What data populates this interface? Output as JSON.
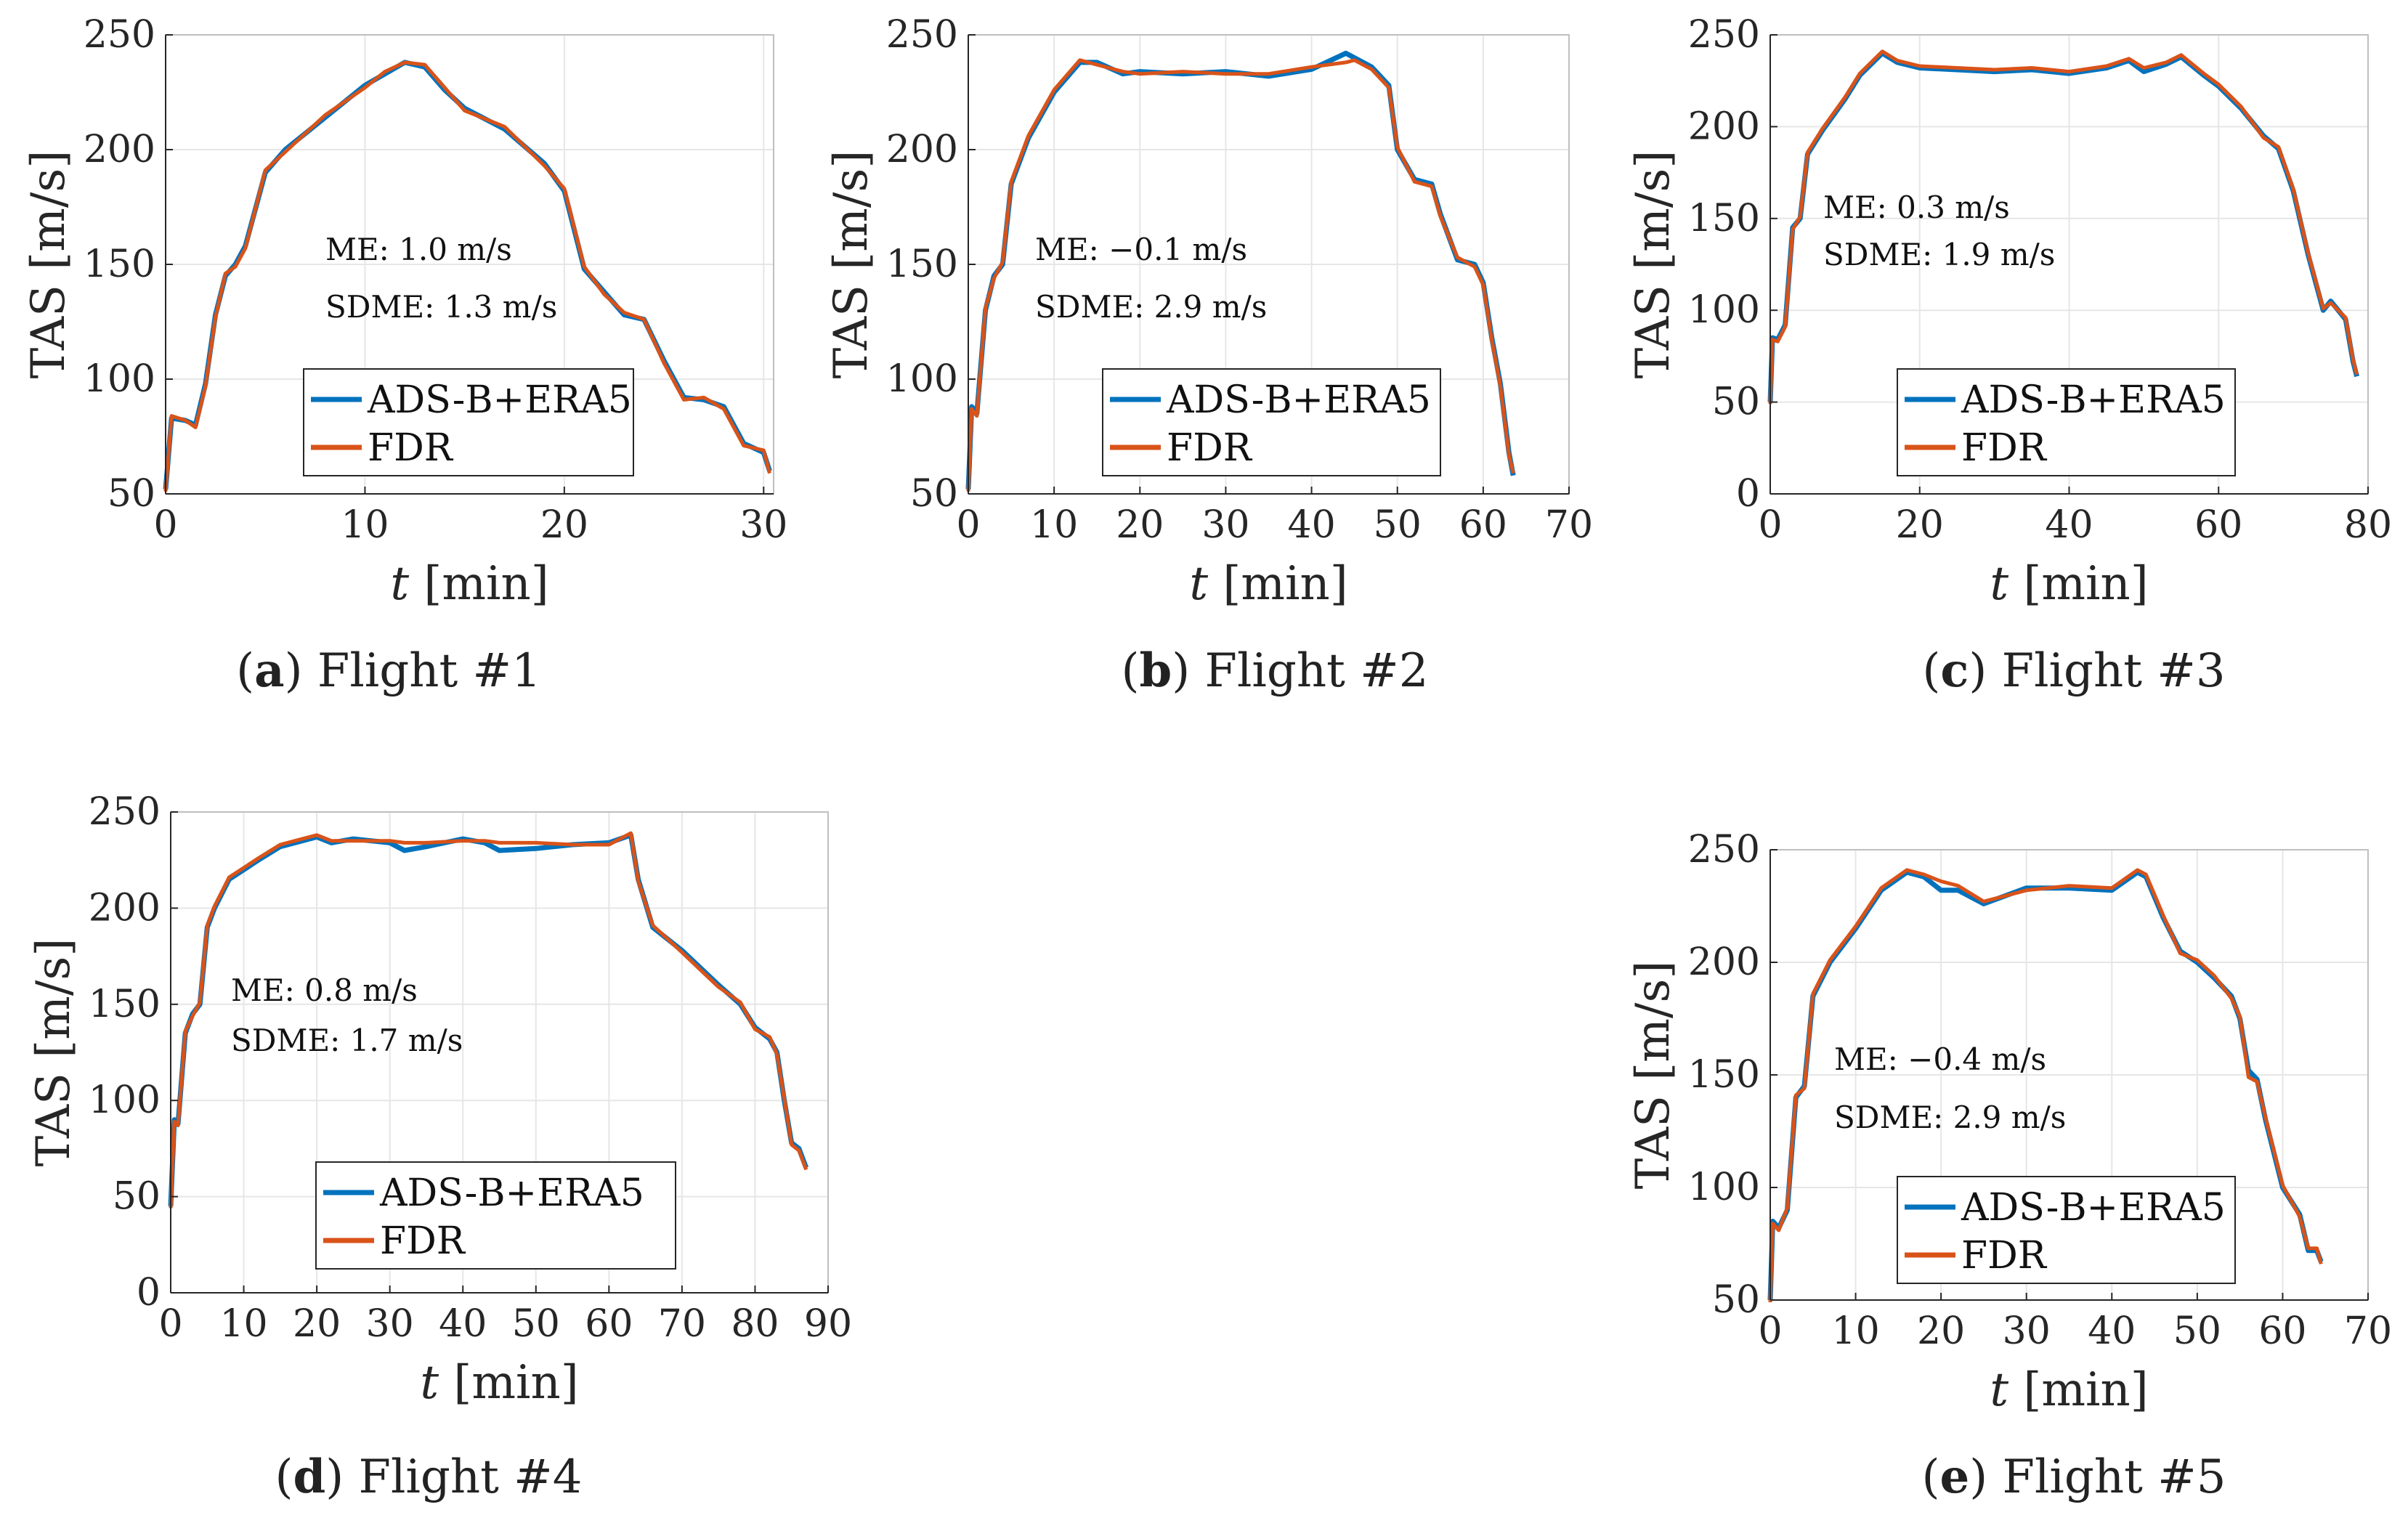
{
  "legend": {
    "series1": "ADS-B+ERA5",
    "series2": "FDR"
  },
  "colors": {
    "series1": "#0072BD",
    "series2": "#D95319",
    "grid": "#e6e6e6",
    "axis": "#262626"
  },
  "chart_data": [
    {
      "id": "a",
      "type": "line",
      "caption_letter": "a",
      "caption_text": " Flight #1",
      "xlabel_var": "t",
      "xlabel_unit": "[min]",
      "ylabel": "TAS [m/s]",
      "xlim": [
        0,
        30.5
      ],
      "ylim": [
        50,
        250
      ],
      "xticks": [
        0,
        10,
        20,
        30
      ],
      "yticks": [
        50,
        100,
        150,
        200,
        250
      ],
      "grid": true,
      "legend_position": "bottom-center",
      "annotations": [
        "ME: 1.0 m/s",
        "SDME: 1.3 m/s"
      ],
      "series": [
        {
          "name": "ADS-B+ERA5",
          "x": [
            0,
            0.3,
            1,
            1.5,
            2,
            2.5,
            3,
            3.5,
            4,
            5,
            6,
            8,
            10,
            11,
            12,
            13,
            14,
            15,
            17,
            19,
            20,
            21,
            22,
            23,
            24,
            25,
            26,
            27,
            28,
            29,
            30,
            30.3
          ],
          "y": [
            52,
            83,
            82,
            80,
            98,
            128,
            145,
            150,
            158,
            190,
            200,
            214,
            228,
            233,
            238,
            236,
            226,
            218,
            209,
            194,
            182,
            148,
            138,
            128,
            126,
            108,
            92,
            91,
            88,
            72,
            68,
            60
          ]
        },
        {
          "name": "FDR",
          "x": [
            0,
            0.3,
            1,
            1.5,
            2,
            2.5,
            3,
            3.5,
            4,
            5,
            6,
            8,
            10,
            11,
            12,
            13,
            14,
            15,
            17,
            19,
            20,
            21,
            22,
            23,
            24,
            25,
            26,
            27,
            28,
            29,
            30,
            30.3
          ],
          "y": [
            51,
            84,
            82,
            79,
            97,
            127,
            146,
            149,
            157,
            191,
            199,
            215,
            227,
            234,
            238,
            237,
            227,
            217,
            210,
            193,
            183,
            149,
            137,
            129,
            126,
            107,
            91,
            92,
            87,
            71,
            69,
            59
          ]
        }
      ]
    },
    {
      "id": "b",
      "type": "line",
      "caption_letter": "b",
      "caption_text": " Flight #2",
      "xlabel_var": "t",
      "xlabel_unit": "[min]",
      "ylabel": "TAS [m/s]",
      "xlim": [
        0,
        70
      ],
      "ylim": [
        50,
        250
      ],
      "xticks": [
        0,
        10,
        20,
        30,
        40,
        50,
        60,
        70
      ],
      "yticks": [
        50,
        100,
        150,
        200,
        250
      ],
      "grid": true,
      "legend_position": "bottom-center",
      "annotations": [
        "ME: −0.1 m/s",
        "SDME: 2.9 m/s"
      ],
      "series": [
        {
          "name": "ADS-B+ERA5",
          "x": [
            0,
            0.4,
            1,
            2,
            3,
            4,
            5,
            7,
            10,
            13,
            15,
            18,
            20,
            25,
            30,
            35,
            40,
            44,
            45,
            47,
            49,
            50,
            52,
            54,
            55,
            57,
            59,
            60,
            61,
            62,
            63,
            63.5
          ],
          "y": [
            52,
            88,
            85,
            130,
            145,
            150,
            185,
            205,
            225,
            238,
            238,
            233,
            234,
            233,
            234,
            232,
            235,
            242,
            240,
            236,
            228,
            200,
            187,
            185,
            172,
            152,
            150,
            142,
            118,
            98,
            68,
            58
          ]
        },
        {
          "name": "FDR",
          "x": [
            0,
            0.4,
            1,
            2,
            3,
            4,
            5,
            7,
            10,
            13,
            15,
            18,
            20,
            25,
            30,
            35,
            40,
            44,
            45,
            47,
            49,
            50,
            52,
            54,
            55,
            57,
            59,
            60,
            61,
            62,
            63,
            63.5
          ],
          "y": [
            51,
            87,
            84,
            131,
            144,
            151,
            186,
            206,
            226,
            239,
            237,
            234,
            233,
            234,
            233,
            233,
            236,
            238,
            239,
            235,
            227,
            201,
            186,
            184,
            171,
            153,
            149,
            141,
            117,
            97,
            67,
            59
          ]
        }
      ]
    },
    {
      "id": "c",
      "type": "line",
      "caption_letter": "c",
      "caption_text": " Flight #3",
      "xlabel_var": "t",
      "xlabel_unit": "[min]",
      "ylabel": "TAS [m/s]",
      "xlim": [
        0,
        80
      ],
      "ylim": [
        0,
        250
      ],
      "xticks": [
        0,
        20,
        40,
        60,
        80
      ],
      "yticks": [
        0,
        50,
        100,
        150,
        200,
        250
      ],
      "grid": true,
      "legend_position": "bottom-right",
      "annotations": [
        "ME: 0.3 m/s",
        "SDME: 1.9 m/s"
      ],
      "series": [
        {
          "name": "ADS-B+ERA5",
          "x": [
            0,
            0.3,
            1,
            2,
            3,
            4,
            5,
            7,
            10,
            12,
            15,
            17,
            20,
            25,
            30,
            35,
            40,
            45,
            48,
            50,
            53,
            55,
            58,
            60,
            63,
            66,
            68,
            70,
            72,
            74,
            75,
            77,
            78,
            78.5
          ],
          "y": [
            50,
            85,
            84,
            92,
            145,
            150,
            185,
            198,
            215,
            228,
            240,
            235,
            232,
            231,
            230,
            231,
            229,
            232,
            236,
            230,
            234,
            238,
            228,
            222,
            210,
            195,
            188,
            165,
            130,
            100,
            105,
            95,
            72,
            64
          ]
        },
        {
          "name": "FDR",
          "x": [
            0,
            0.3,
            1,
            2,
            3,
            4,
            5,
            7,
            10,
            12,
            15,
            17,
            20,
            25,
            30,
            35,
            40,
            45,
            48,
            50,
            53,
            55,
            58,
            60,
            63,
            66,
            68,
            70,
            72,
            74,
            75,
            77,
            78,
            78.5
          ],
          "y": [
            49,
            84,
            83,
            91,
            144,
            151,
            186,
            199,
            216,
            229,
            241,
            236,
            233,
            232,
            231,
            232,
            230,
            233,
            237,
            232,
            235,
            239,
            229,
            223,
            211,
            194,
            189,
            166,
            131,
            101,
            104,
            96,
            73,
            65
          ]
        }
      ]
    },
    {
      "id": "d",
      "type": "line",
      "caption_letter": "d",
      "caption_text": " Flight #4",
      "xlabel_var": "t",
      "xlabel_unit": "[min]",
      "ylabel": "TAS [m/s]",
      "xlim": [
        0,
        90
      ],
      "ylim": [
        0,
        250
      ],
      "xticks": [
        0,
        10,
        20,
        30,
        40,
        50,
        60,
        70,
        80,
        90
      ],
      "yticks": [
        0,
        50,
        100,
        150,
        200,
        250
      ],
      "grid": true,
      "legend_position": "bottom-center",
      "annotations": [
        "ME: 0.8 m/s",
        "SDME: 1.7 m/s"
      ],
      "series": [
        {
          "name": "ADS-B+ERA5",
          "x": [
            0,
            0.5,
            1,
            2,
            3,
            4,
            5,
            6,
            8,
            10,
            12,
            15,
            18,
            20,
            22,
            25,
            30,
            32,
            35,
            40,
            43,
            45,
            50,
            55,
            60,
            63,
            64,
            66,
            70,
            75,
            78,
            80,
            82,
            83,
            84,
            85,
            86,
            87
          ],
          "y": [
            45,
            90,
            88,
            135,
            145,
            150,
            190,
            200,
            215,
            220,
            225,
            232,
            235,
            237,
            234,
            236,
            234,
            230,
            232,
            236,
            234,
            230,
            231,
            233,
            234,
            238,
            215,
            190,
            178,
            160,
            150,
            138,
            132,
            125,
            100,
            78,
            75,
            65
          ]
        },
        {
          "name": "FDR",
          "x": [
            0,
            0.5,
            1,
            2,
            3,
            4,
            5,
            6,
            8,
            10,
            12,
            15,
            18,
            20,
            22,
            25,
            30,
            32,
            35,
            40,
            43,
            45,
            50,
            55,
            60,
            63,
            64,
            66,
            70,
            75,
            78,
            80,
            82,
            83,
            84,
            85,
            86,
            87
          ],
          "y": [
            44,
            89,
            87,
            136,
            144,
            151,
            191,
            201,
            216,
            221,
            226,
            233,
            236,
            238,
            235,
            235,
            235,
            234,
            234,
            235,
            235,
            234,
            234,
            233,
            233,
            239,
            214,
            191,
            177,
            159,
            151,
            137,
            133,
            124,
            101,
            77,
            74,
            64
          ]
        }
      ]
    },
    {
      "id": "e",
      "type": "line",
      "caption_letter": "e",
      "caption_text": " Flight #5",
      "xlabel_var": "t",
      "xlabel_unit": "[min]",
      "ylabel": "TAS [m/s]",
      "xlim": [
        0,
        70
      ],
      "ylim": [
        50,
        250
      ],
      "xticks": [
        0,
        10,
        20,
        30,
        40,
        50,
        60,
        70
      ],
      "yticks": [
        50,
        100,
        150,
        200,
        250
      ],
      "grid": true,
      "legend_position": "bottom-center",
      "annotations": [
        "ME: −0.4 m/s",
        "SDME: 2.9 m/s"
      ],
      "series": [
        {
          "name": "ADS-B+ERA5",
          "x": [
            0,
            0.3,
            1,
            2,
            3,
            4,
            5,
            7,
            10,
            13,
            16,
            18,
            20,
            22,
            25,
            30,
            35,
            40,
            43,
            44,
            46,
            48,
            50,
            52,
            54,
            55,
            56,
            57,
            58,
            60,
            62,
            63,
            64,
            64.5
          ],
          "y": [
            50,
            85,
            82,
            90,
            140,
            145,
            185,
            200,
            215,
            232,
            240,
            238,
            232,
            232,
            226,
            233,
            233,
            232,
            240,
            238,
            220,
            205,
            200,
            193,
            185,
            175,
            152,
            148,
            130,
            100,
            88,
            72,
            72,
            67
          ]
        },
        {
          "name": "FDR",
          "x": [
            0,
            0.3,
            1,
            2,
            3,
            4,
            5,
            7,
            10,
            13,
            16,
            18,
            20,
            22,
            25,
            30,
            35,
            40,
            43,
            44,
            46,
            48,
            50,
            52,
            54,
            55,
            56,
            57,
            58,
            60,
            62,
            63,
            64,
            64.5
          ],
          "y": [
            49,
            84,
            81,
            91,
            141,
            144,
            186,
            201,
            216,
            233,
            241,
            239,
            236,
            234,
            227,
            232,
            234,
            233,
            241,
            239,
            221,
            204,
            201,
            194,
            184,
            176,
            149,
            147,
            131,
            101,
            87,
            73,
            73,
            66
          ]
        }
      ]
    }
  ]
}
